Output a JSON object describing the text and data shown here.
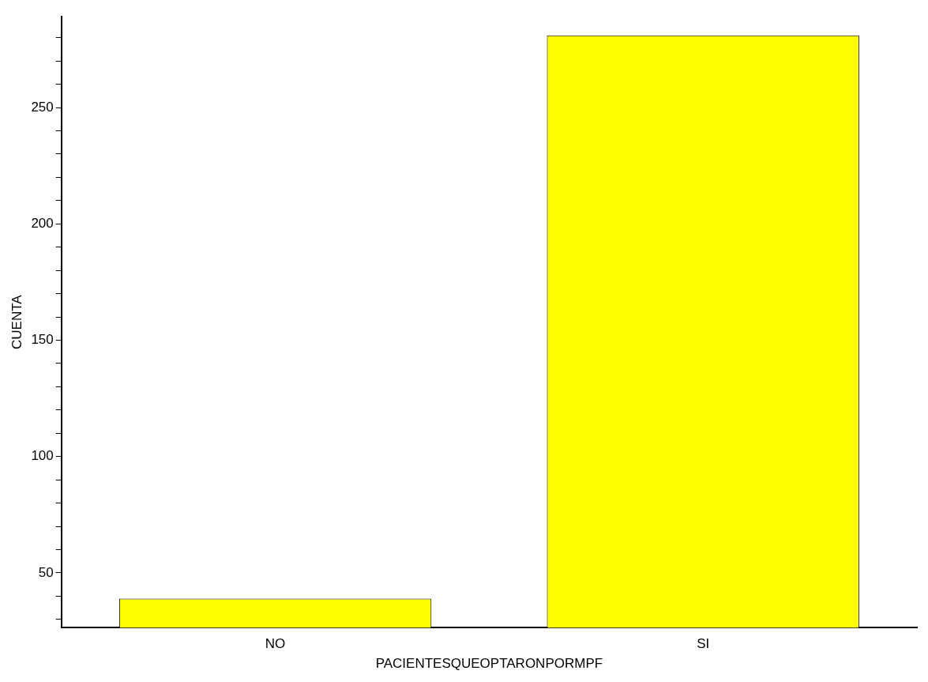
{
  "chart_data": {
    "type": "bar",
    "xlabel": "PACIENTESQUEOPTARONPORMPF",
    "ylabel": "CUENTA",
    "categories": [
      "NO",
      "SI"
    ],
    "values": [
      39,
      281
    ],
    "color": "#ffff00",
    "ylim": [
      26.5,
      289
    ],
    "yticks": [
      {
        "value": 30,
        "label": null
      },
      {
        "value": 40,
        "label": null
      },
      50,
      {
        "value": 60,
        "label": null
      },
      {
        "value": 70,
        "label": null
      },
      {
        "value": 80,
        "label": null
      },
      {
        "value": 90,
        "label": null
      },
      100,
      {
        "value": 110,
        "label": null
      },
      {
        "value": 120,
        "label": null
      },
      {
        "value": 130,
        "label": null
      },
      {
        "value": 140,
        "label": null
      },
      150,
      {
        "value": 160,
        "label": null
      },
      {
        "value": 170,
        "label": null
      },
      {
        "value": 180,
        "label": null
      },
      {
        "value": 190,
        "label": null
      },
      200,
      {
        "value": 210,
        "label": null
      },
      {
        "value": 220,
        "label": null
      },
      {
        "value": 230,
        "label": null
      },
      {
        "value": 240,
        "label": null
      },
      250,
      {
        "value": 260,
        "label": null
      },
      {
        "value": 270,
        "label": null
      },
      {
        "value": 280,
        "label": null
      }
    ],
    "grid": false,
    "legend": false
  }
}
